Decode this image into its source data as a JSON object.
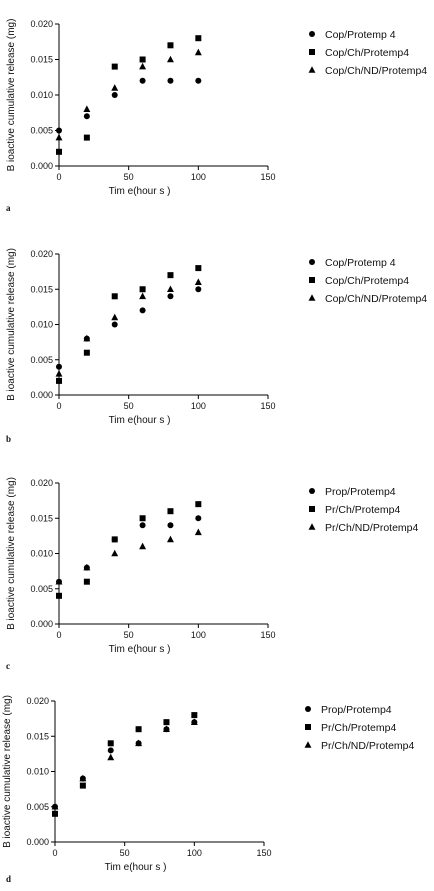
{
  "chart_data": [
    {
      "type": "scatter",
      "panel_label": "a",
      "xlabel": "Tim e(hour s )",
      "ylabel": "B ioactive cumulative release  (mg)",
      "xlim": [
        0,
        150
      ],
      "ylim": [
        0,
        0.02
      ],
      "xticks": [
        "0",
        "50",
        "100",
        "150"
      ],
      "yticks": [
        "0.000",
        "0.005",
        "0.010",
        "0.015",
        "0.020"
      ],
      "legend_position": "right",
      "series": [
        {
          "name": "Cop/Protemp 4",
          "marker": "circle",
          "x": [
            0,
            20,
            40,
            60,
            80,
            100
          ],
          "y": [
            0.005,
            0.007,
            0.01,
            0.012,
            0.012,
            0.012
          ]
        },
        {
          "name": "Cop/Ch/Protemp4",
          "marker": "square",
          "x": [
            0,
            20,
            40,
            60,
            80,
            100
          ],
          "y": [
            0.002,
            0.004,
            0.014,
            0.015,
            0.017,
            0.018
          ]
        },
        {
          "name": "Cop/Ch/ND/Protemp4",
          "marker": "triangle",
          "x": [
            0,
            20,
            40,
            60,
            80,
            100
          ],
          "y": [
            0.004,
            0.008,
            0.011,
            0.014,
            0.015,
            0.016
          ]
        }
      ]
    },
    {
      "type": "scatter",
      "panel_label": "b",
      "xlabel": "Tim e(hour s )",
      "ylabel": "B ioactive cumulative release  (mg)",
      "xlim": [
        0,
        150
      ],
      "ylim": [
        0,
        0.02
      ],
      "xticks": [
        "0",
        "50",
        "100",
        "150"
      ],
      "yticks": [
        "0.000",
        "0.005",
        "0.010",
        "0.015",
        "0.020"
      ],
      "legend_position": "right",
      "series": [
        {
          "name": "Cop/Protemp 4",
          "marker": "circle",
          "x": [
            0,
            20,
            40,
            60,
            80,
            100
          ],
          "y": [
            0.004,
            0.008,
            0.01,
            0.012,
            0.014,
            0.015
          ]
        },
        {
          "name": "Cop/Ch/Protemp4",
          "marker": "square",
          "x": [
            0,
            20,
            40,
            60,
            80,
            100
          ],
          "y": [
            0.002,
            0.006,
            0.014,
            0.015,
            0.017,
            0.018
          ]
        },
        {
          "name": "Cop/Ch/ND/Protemp4",
          "marker": "triangle",
          "x": [
            0,
            20,
            40,
            60,
            80,
            100
          ],
          "y": [
            0.003,
            0.008,
            0.011,
            0.014,
            0.015,
            0.016
          ]
        }
      ]
    },
    {
      "type": "scatter",
      "panel_label": "c",
      "xlabel": "Tim e(hour s )",
      "ylabel": "B ioactive cumulative release  (mg)",
      "xlim": [
        0,
        150
      ],
      "ylim": [
        0,
        0.02
      ],
      "xticks": [
        "0",
        "50",
        "100",
        "150"
      ],
      "yticks": [
        "0.000",
        "0.005",
        "0.010",
        "0.015",
        "0.020"
      ],
      "legend_position": "right",
      "series": [
        {
          "name": "Prop/Protemp4",
          "marker": "circle",
          "x": [
            0,
            20,
            40,
            60,
            80,
            100
          ],
          "y": [
            0.006,
            0.008,
            0.012,
            0.014,
            0.014,
            0.015
          ]
        },
        {
          "name": "Pr/Ch/Protemp4",
          "marker": "square",
          "x": [
            0,
            20,
            40,
            60,
            80,
            100
          ],
          "y": [
            0.004,
            0.006,
            0.012,
            0.015,
            0.016,
            0.017
          ]
        },
        {
          "name": "Pr/Ch/ND/Protemp4",
          "marker": "triangle",
          "x": [
            0,
            20,
            40,
            60,
            80,
            100
          ],
          "y": [
            0.006,
            0.008,
            0.01,
            0.011,
            0.012,
            0.013
          ]
        }
      ]
    },
    {
      "type": "scatter",
      "panel_label": "d",
      "xlabel": "Tim e(hour s )",
      "ylabel": "B ioactive cumulative release (mg)",
      "xlim": [
        0,
        150
      ],
      "ylim": [
        0,
        0.02
      ],
      "xticks": [
        "0",
        "50",
        "100",
        "150"
      ],
      "yticks": [
        "0.000",
        "0.005",
        "0.010",
        "0.015",
        "0.020"
      ],
      "legend_position": "right",
      "series": [
        {
          "name": "Prop/Protemp4",
          "marker": "circle",
          "x": [
            0,
            20,
            40,
            60,
            80,
            100
          ],
          "y": [
            0.005,
            0.009,
            0.013,
            0.014,
            0.016,
            0.017
          ]
        },
        {
          "name": "Pr/Ch/Protemp4",
          "marker": "square",
          "x": [
            0,
            20,
            40,
            60,
            80,
            100
          ],
          "y": [
            0.004,
            0.008,
            0.014,
            0.016,
            0.017,
            0.018
          ]
        },
        {
          "name": "Pr/Ch/ND/Protemp4",
          "marker": "triangle",
          "x": [
            0,
            20,
            40,
            60,
            80,
            100
          ],
          "y": [
            0.005,
            0.009,
            0.012,
            0.014,
            0.016,
            0.017
          ]
        }
      ]
    }
  ]
}
